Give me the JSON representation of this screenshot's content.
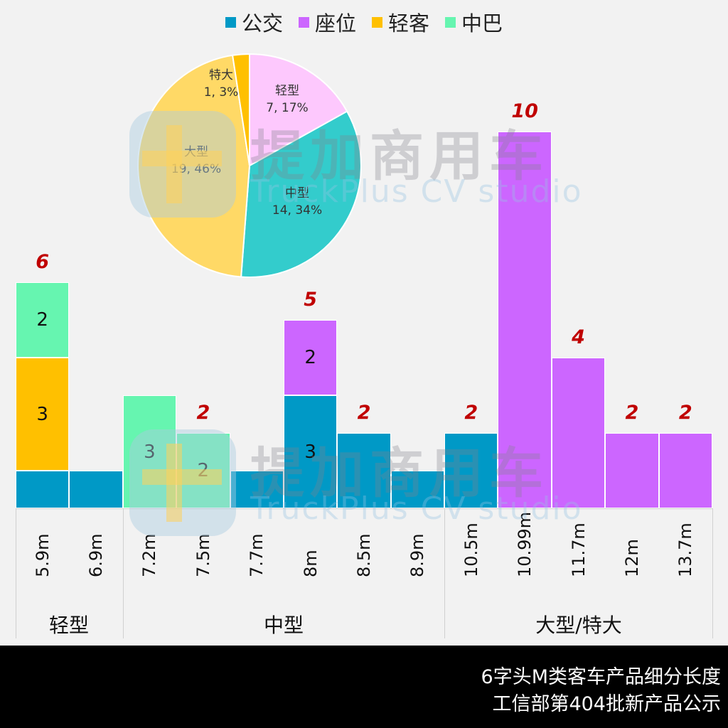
{
  "legend": [
    {
      "label": "公交",
      "color": "#0099c6"
    },
    {
      "label": "座位",
      "color": "#cc66ff"
    },
    {
      "label": "轻客",
      "color": "#ffc000"
    },
    {
      "label": "中巴",
      "color": "#66f5b0"
    }
  ],
  "watermark": {
    "cn": "提加商用车",
    "en": "TruckPlus CV studio"
  },
  "pie": {
    "slices": [
      {
        "name": "轻型",
        "value": 7,
        "pct": "17%",
        "label": "7, 17%",
        "color": "#fdc8fd"
      },
      {
        "name": "中型",
        "value": 14,
        "pct": "34%",
        "label": "14, 34%",
        "color": "#33cccc"
      },
      {
        "name": "大型",
        "value": 19,
        "pct": "46%",
        "label": "19, 46%",
        "color": "#ffd966"
      },
      {
        "name": "特大",
        "value": 1,
        "pct": "3%",
        "label": "1, 3%",
        "color": "#ffc000"
      }
    ]
  },
  "groups": [
    {
      "label": "轻型"
    },
    {
      "label": "中型"
    },
    {
      "label": "大型/特大"
    }
  ],
  "footer": {
    "line1": "6字头M类客车产品细分长度",
    "line2": "工信部第404批新产品公示"
  },
  "chart_data": [
    {
      "type": "bar",
      "stacked": true,
      "title": "6字头M类客车产品细分长度",
      "subtitle": "工信部第404批新产品公示",
      "xlabel": "",
      "ylabel": "",
      "grid": false,
      "legend_position": "top",
      "categories": [
        "5.9m",
        "6.9m",
        "7.2m",
        "7.5m",
        "7.7m",
        "8m",
        "8.5m",
        "8.9m",
        "10.5m",
        "10.99m",
        "11.7m",
        "12m",
        "13.7m"
      ],
      "category_groups": [
        {
          "label": "轻型",
          "categories": [
            "5.9m",
            "6.9m"
          ]
        },
        {
          "label": "中型",
          "categories": [
            "7.2m",
            "7.5m",
            "7.7m",
            "8m",
            "8.5m",
            "8.9m"
          ]
        },
        {
          "label": "大型/特大",
          "categories": [
            "10.5m",
            "10.99m",
            "11.7m",
            "12m",
            "13.7m"
          ]
        }
      ],
      "series": [
        {
          "name": "公交",
          "values": [
            1,
            1,
            0,
            0,
            1,
            3,
            2,
            1,
            2,
            0,
            0,
            0,
            0
          ]
        },
        {
          "name": "座位",
          "values": [
            0,
            0,
            0,
            0,
            0,
            2,
            0,
            0,
            0,
            10,
            4,
            2,
            2
          ]
        },
        {
          "name": "轻客",
          "values": [
            3,
            0,
            0,
            0,
            0,
            0,
            0,
            0,
            0,
            0,
            0,
            0,
            0
          ]
        },
        {
          "name": "中巴",
          "values": [
            2,
            0,
            3,
            2,
            0,
            0,
            0,
            0,
            0,
            0,
            0,
            0,
            0
          ]
        }
      ],
      "totals": [
        6,
        1,
        3,
        2,
        1,
        5,
        2,
        1,
        2,
        10,
        4,
        2,
        2
      ],
      "total_labels_shown": [
        "6",
        "",
        "",
        "2",
        "",
        "5",
        "2",
        "",
        "2",
        "10",
        "4",
        "2",
        "2"
      ],
      "ylim": [
        0,
        10
      ]
    },
    {
      "type": "pie",
      "categories": [
        "轻型",
        "中型",
        "大型",
        "特大"
      ],
      "values": [
        7,
        14,
        19,
        1
      ],
      "percentages": [
        17,
        34,
        46,
        3
      ],
      "labels": [
        "轻型 7, 17%",
        "中型 14, 34%",
        "大型 19, 46%",
        "特大 1, 3%"
      ]
    }
  ]
}
